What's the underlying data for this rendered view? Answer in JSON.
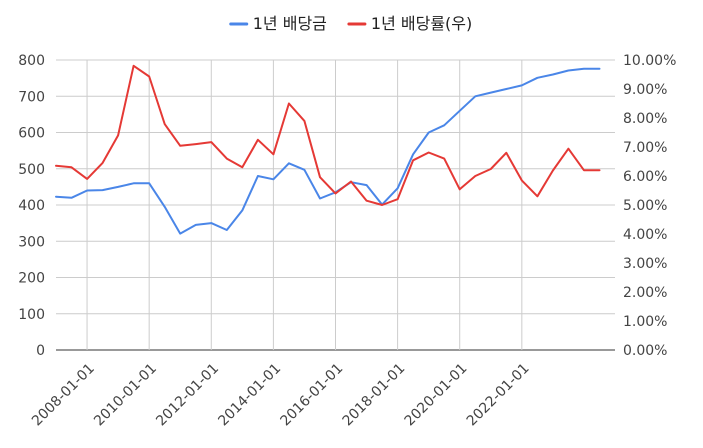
{
  "chart_data": {
    "type": "line",
    "title": "",
    "legend_position": "top",
    "grid": true,
    "x_ticks": [
      "2008-01-01",
      "2010-01-01",
      "2012-01-01",
      "2014-01-01",
      "2016-01-01",
      "2018-01-01",
      "2020-01-01",
      "2022-01-01"
    ],
    "x_tick_years": [
      2008,
      2010,
      2012,
      2014,
      2016,
      2018,
      2020,
      2022
    ],
    "x_range": [
      2007.0,
      2025.0
    ],
    "left_axis": {
      "min": 0,
      "max": 800,
      "ticks": [
        "0",
        "100",
        "200",
        "300",
        "400",
        "500",
        "600",
        "700",
        "800"
      ]
    },
    "right_axis": {
      "min": 0,
      "max": 10,
      "ticks": [
        "0.00%",
        "1.00%",
        "2.00%",
        "3.00%",
        "4.00%",
        "5.00%",
        "6.00%",
        "7.00%",
        "8.00%",
        "9.00%",
        "10.00%"
      ]
    },
    "series": [
      {
        "name": "1년 배당금",
        "color": "#4a86e8",
        "axis": "left",
        "points": [
          [
            2007.0,
            423
          ],
          [
            2007.5,
            420
          ],
          [
            2008.0,
            440
          ],
          [
            2008.5,
            441
          ],
          [
            2009.0,
            450
          ],
          [
            2009.5,
            460
          ],
          [
            2010.0,
            460
          ],
          [
            2010.5,
            395
          ],
          [
            2011.0,
            321
          ],
          [
            2011.5,
            345
          ],
          [
            2012.0,
            350
          ],
          [
            2012.5,
            331
          ],
          [
            2013.0,
            385
          ],
          [
            2013.5,
            480
          ],
          [
            2014.0,
            471
          ],
          [
            2014.5,
            515
          ],
          [
            2015.0,
            497
          ],
          [
            2015.5,
            418
          ],
          [
            2016.0,
            435
          ],
          [
            2016.5,
            463
          ],
          [
            2017.0,
            455
          ],
          [
            2017.5,
            401
          ],
          [
            2018.0,
            446
          ],
          [
            2018.5,
            540
          ],
          [
            2019.0,
            600
          ],
          [
            2019.5,
            620
          ],
          [
            2020.0,
            660
          ],
          [
            2020.5,
            700
          ],
          [
            2021.0,
            710
          ],
          [
            2021.5,
            720
          ],
          [
            2022.0,
            730
          ],
          [
            2022.5,
            751
          ],
          [
            2023.0,
            760
          ],
          [
            2023.5,
            771
          ],
          [
            2024.0,
            776
          ],
          [
            2024.5,
            776
          ]
        ]
      },
      {
        "name": "1년 배당률(우)",
        "color": "#e53935",
        "axis": "right",
        "points": [
          [
            2007.0,
            6.35
          ],
          [
            2007.5,
            6.3
          ],
          [
            2008.0,
            5.9
          ],
          [
            2008.5,
            6.45
          ],
          [
            2009.0,
            7.4
          ],
          [
            2009.5,
            9.8
          ],
          [
            2010.0,
            9.43
          ],
          [
            2010.5,
            7.79
          ],
          [
            2011.0,
            7.04
          ],
          [
            2011.5,
            7.1
          ],
          [
            2012.0,
            7.17
          ],
          [
            2012.5,
            6.6
          ],
          [
            2013.0,
            6.3
          ],
          [
            2013.5,
            7.25
          ],
          [
            2014.0,
            6.75
          ],
          [
            2014.5,
            8.5
          ],
          [
            2015.0,
            7.9
          ],
          [
            2015.5,
            5.96
          ],
          [
            2016.0,
            5.4
          ],
          [
            2016.5,
            5.81
          ],
          [
            2017.0,
            5.15
          ],
          [
            2017.5,
            5.0
          ],
          [
            2018.0,
            5.2
          ],
          [
            2018.5,
            6.54
          ],
          [
            2019.0,
            6.81
          ],
          [
            2019.5,
            6.6
          ],
          [
            2020.0,
            5.54
          ],
          [
            2020.5,
            6.0
          ],
          [
            2021.0,
            6.24
          ],
          [
            2021.5,
            6.8
          ],
          [
            2022.0,
            5.85
          ],
          [
            2022.5,
            5.3
          ],
          [
            2023.0,
            6.19
          ],
          [
            2023.5,
            6.94
          ],
          [
            2024.0,
            6.2
          ],
          [
            2024.5,
            6.2
          ]
        ]
      }
    ]
  }
}
